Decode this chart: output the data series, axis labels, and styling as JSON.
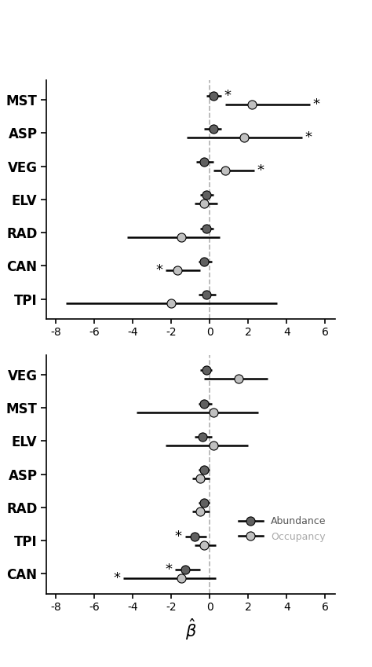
{
  "panel1": {
    "labels": [
      "MST",
      "ASP",
      "VEG",
      "ELV",
      "RAD",
      "CAN",
      "TPI"
    ],
    "abundance": {
      "centers": [
        0.2,
        0.2,
        -0.3,
        -0.2,
        -0.2,
        -0.3,
        -0.2
      ],
      "lo": [
        -0.2,
        -0.3,
        -0.7,
        -0.5,
        -0.5,
        -0.6,
        -0.6
      ],
      "hi": [
        0.6,
        0.6,
        0.2,
        0.2,
        0.2,
        0.1,
        0.3
      ]
    },
    "occupancy": {
      "centers": [
        2.2,
        1.8,
        0.8,
        -0.3,
        -1.5,
        -1.7,
        -2.0
      ],
      "lo": [
        0.8,
        -1.2,
        0.2,
        -0.8,
        -4.3,
        -2.3,
        -7.5
      ],
      "hi": [
        5.2,
        4.8,
        2.3,
        0.4,
        0.5,
        -0.5,
        3.5
      ]
    },
    "sig_abundance_hi": [
      true,
      false,
      false,
      false,
      false,
      false,
      false
    ],
    "sig_occupancy_hi": [
      true,
      true,
      true,
      false,
      false,
      false,
      false
    ],
    "sig_occupancy_lo": [
      false,
      false,
      false,
      false,
      false,
      true,
      false
    ]
  },
  "panel2": {
    "labels": [
      "VEG",
      "MST",
      "ELV",
      "ASP",
      "RAD",
      "TPI",
      "CAN"
    ],
    "abundance": {
      "centers": [
        -0.2,
        -0.3,
        -0.4,
        -0.3,
        -0.3,
        -0.8,
        -1.3
      ],
      "lo": [
        -0.5,
        -0.6,
        -0.8,
        -0.6,
        -0.6,
        -1.3,
        -1.8
      ],
      "hi": [
        0.1,
        0.1,
        0.1,
        0.0,
        0.0,
        -0.2,
        -0.5
      ]
    },
    "occupancy": {
      "centers": [
        1.5,
        0.2,
        0.2,
        -0.5,
        -0.5,
        -0.3,
        -1.5
      ],
      "lo": [
        -0.3,
        -3.8,
        -2.3,
        -0.9,
        -0.9,
        -0.8,
        -4.5
      ],
      "hi": [
        3.0,
        2.5,
        2.0,
        0.0,
        0.0,
        0.3,
        0.3
      ]
    },
    "sig_abundance_lo": [
      false,
      false,
      false,
      false,
      false,
      true,
      true
    ],
    "sig_occupancy_lo": [
      false,
      false,
      false,
      false,
      false,
      false,
      true
    ]
  },
  "xlim": [
    -8.5,
    6.5
  ],
  "xticks": [
    -8,
    -6,
    -4,
    -2,
    0,
    2,
    4,
    6
  ],
  "abundance_marker_color": "#606060",
  "occupancy_marker_color": "#c0c0c0",
  "dashed_color": "#b0b0b0",
  "xlabel": "$\\hat{\\beta}$"
}
